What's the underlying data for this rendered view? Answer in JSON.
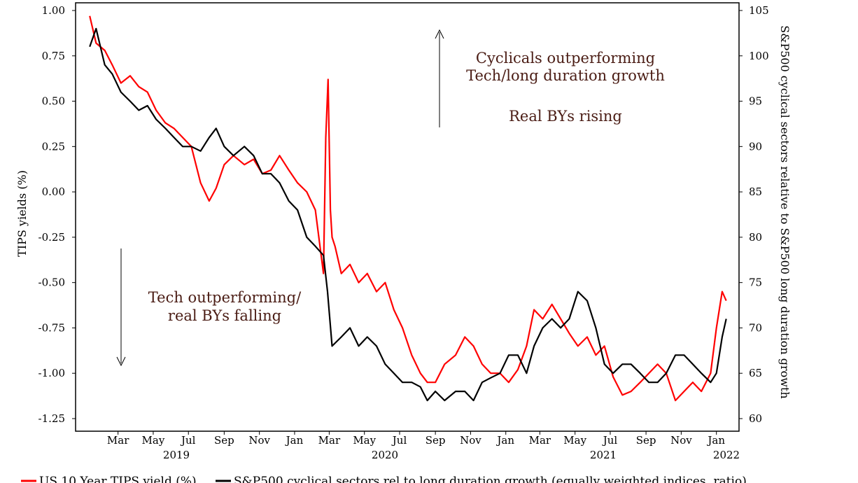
{
  "chart_data": {
    "type": "line",
    "left_axis": {
      "label": "TIPS yields (%)",
      "range": [
        -1.25,
        1.0
      ],
      "ticks": [
        "1.00",
        "0.75",
        "0.50",
        "0.25",
        "0.00",
        "-0.25",
        "-0.50",
        "-0.75",
        "-1.00",
        "-1.25"
      ]
    },
    "right_axis": {
      "label": "S&P500 cyclical sectors relative to S&P500 long duration growth",
      "range": [
        60,
        105
      ],
      "ticks": [
        "105",
        "100",
        "95",
        "90",
        "85",
        "80",
        "75",
        "70",
        "65",
        "60"
      ]
    },
    "x_axis": {
      "month_labels": [
        "Mar",
        "May",
        "Jul",
        "Sep",
        "Nov",
        "Jan",
        "Mar",
        "May",
        "Jul",
        "Sep",
        "Nov",
        "Jan",
        "Mar",
        "May",
        "Jul",
        "Sep",
        "Nov",
        "Jan"
      ],
      "year_labels": [
        "2019",
        "2020",
        "2021",
        "2022"
      ]
    },
    "annotations": {
      "top_line1": "Cyclicals outperforming",
      "top_line2": "Tech/long duration growth",
      "top_line3": "Real BYs rising",
      "bottom_line1": "Tech outperforming/",
      "bottom_line2": "real BYs falling"
    },
    "legend": {
      "series1": "US 10 Year TIPS yield (%)",
      "series2": "S&P500 cyclical sectors rel to long duration growth (equally weighted indices, ratio)"
    },
    "series": [
      {
        "name": "US 10 Year TIPS yield (%)",
        "axis": "left",
        "color": "#ff0000",
        "x": [
          "2019-01-25",
          "2019-02-05",
          "2019-02-20",
          "2019-03-05",
          "2019-03-20",
          "2019-04-05",
          "2019-04-20",
          "2019-05-05",
          "2019-05-20",
          "2019-06-05",
          "2019-06-20",
          "2019-07-05",
          "2019-07-20",
          "2019-08-05",
          "2019-08-20",
          "2019-09-01",
          "2019-09-15",
          "2019-10-01",
          "2019-10-20",
          "2019-11-05",
          "2019-11-20",
          "2019-12-05",
          "2019-12-20",
          "2020-01-05",
          "2020-01-20",
          "2020-02-05",
          "2020-02-20",
          "2020-03-05",
          "2020-03-09",
          "2020-03-13",
          "2020-03-17",
          "2020-03-20",
          "2020-03-25",
          "2020-04-05",
          "2020-04-20",
          "2020-05-05",
          "2020-05-20",
          "2020-06-05",
          "2020-06-20",
          "2020-07-05",
          "2020-07-20",
          "2020-08-05",
          "2020-08-20",
          "2020-09-01",
          "2020-09-15",
          "2020-10-01",
          "2020-10-20",
          "2020-11-05",
          "2020-11-20",
          "2020-12-05",
          "2020-12-20",
          "2021-01-05",
          "2021-01-20",
          "2021-02-05",
          "2021-02-20",
          "2021-03-05",
          "2021-03-20",
          "2021-04-05",
          "2021-04-20",
          "2021-05-05",
          "2021-05-20",
          "2021-06-05",
          "2021-06-20",
          "2021-07-05",
          "2021-07-20",
          "2021-08-05",
          "2021-08-20",
          "2021-09-05",
          "2021-09-20",
          "2021-10-05",
          "2021-10-20",
          "2021-11-05",
          "2021-11-20",
          "2021-12-05",
          "2021-12-20",
          "2022-01-05",
          "2022-01-15",
          "2022-01-25",
          "2022-02-01"
        ],
        "values": [
          0.97,
          0.82,
          0.78,
          0.7,
          0.6,
          0.64,
          0.58,
          0.55,
          0.45,
          0.38,
          0.35,
          0.3,
          0.25,
          0.05,
          -0.05,
          0.02,
          0.15,
          0.2,
          0.15,
          0.18,
          0.1,
          0.12,
          0.2,
          0.12,
          0.05,
          0.0,
          -0.1,
          -0.45,
          0.3,
          0.62,
          -0.1,
          -0.25,
          -0.3,
          -0.45,
          -0.4,
          -0.5,
          -0.45,
          -0.55,
          -0.5,
          -0.65,
          -0.75,
          -0.9,
          -1.0,
          -1.05,
          -1.05,
          -0.95,
          -0.9,
          -0.8,
          -0.85,
          -0.95,
          -1.0,
          -1.0,
          -1.05,
          -0.98,
          -0.85,
          -0.65,
          -0.7,
          -0.62,
          -0.7,
          -0.78,
          -0.85,
          -0.8,
          -0.9,
          -0.85,
          -1.02,
          -1.12,
          -1.1,
          -1.05,
          -1.0,
          -0.95,
          -1.0,
          -1.15,
          -1.1,
          -1.05,
          -1.1,
          -1.0,
          -0.75,
          -0.55,
          -0.6
        ]
      },
      {
        "name": "S&P500 cyclical sectors rel to long duration growth (equally weighted indices, ratio)",
        "axis": "right",
        "color": "#000000",
        "x": [
          "2019-01-25",
          "2019-02-05",
          "2019-02-20",
          "2019-03-05",
          "2019-03-20",
          "2019-04-05",
          "2019-04-20",
          "2019-05-05",
          "2019-05-20",
          "2019-06-05",
          "2019-06-20",
          "2019-07-05",
          "2019-07-20",
          "2019-08-05",
          "2019-08-20",
          "2019-09-01",
          "2019-09-15",
          "2019-10-01",
          "2019-10-20",
          "2019-11-05",
          "2019-11-20",
          "2019-12-05",
          "2019-12-20",
          "2020-01-05",
          "2020-01-20",
          "2020-02-05",
          "2020-02-20",
          "2020-03-05",
          "2020-03-12",
          "2020-03-20",
          "2020-04-05",
          "2020-04-20",
          "2020-05-05",
          "2020-05-20",
          "2020-06-05",
          "2020-06-20",
          "2020-07-05",
          "2020-07-20",
          "2020-08-05",
          "2020-08-20",
          "2020-09-01",
          "2020-09-15",
          "2020-10-01",
          "2020-10-20",
          "2020-11-05",
          "2020-11-20",
          "2020-12-05",
          "2020-12-20",
          "2021-01-05",
          "2021-01-20",
          "2021-02-05",
          "2021-02-20",
          "2021-03-05",
          "2021-03-20",
          "2021-04-05",
          "2021-04-20",
          "2021-05-05",
          "2021-05-20",
          "2021-06-05",
          "2021-06-20",
          "2021-07-05",
          "2021-07-20",
          "2021-08-05",
          "2021-08-20",
          "2021-09-05",
          "2021-09-20",
          "2021-10-05",
          "2021-10-20",
          "2021-11-05",
          "2021-11-20",
          "2021-12-05",
          "2021-12-20",
          "2022-01-05",
          "2022-01-15",
          "2022-01-25",
          "2022-02-01"
        ],
        "values": [
          101,
          103,
          99,
          98,
          96,
          95,
          94,
          94.5,
          93,
          92,
          91,
          90,
          90,
          89.5,
          91,
          92,
          90,
          89,
          90,
          89,
          87,
          87,
          86,
          84,
          83,
          80,
          79,
          78,
          74,
          68,
          69,
          70,
          68,
          69,
          68,
          66,
          65,
          64,
          64,
          63.5,
          62,
          63,
          62,
          63,
          63,
          62,
          64,
          64.5,
          65,
          67,
          67,
          65,
          68,
          70,
          71,
          70,
          71,
          74,
          73,
          70,
          66,
          65,
          66,
          66,
          65,
          64,
          64,
          65,
          67,
          67,
          66,
          65,
          64,
          65,
          69,
          71
        ]
      }
    ]
  }
}
